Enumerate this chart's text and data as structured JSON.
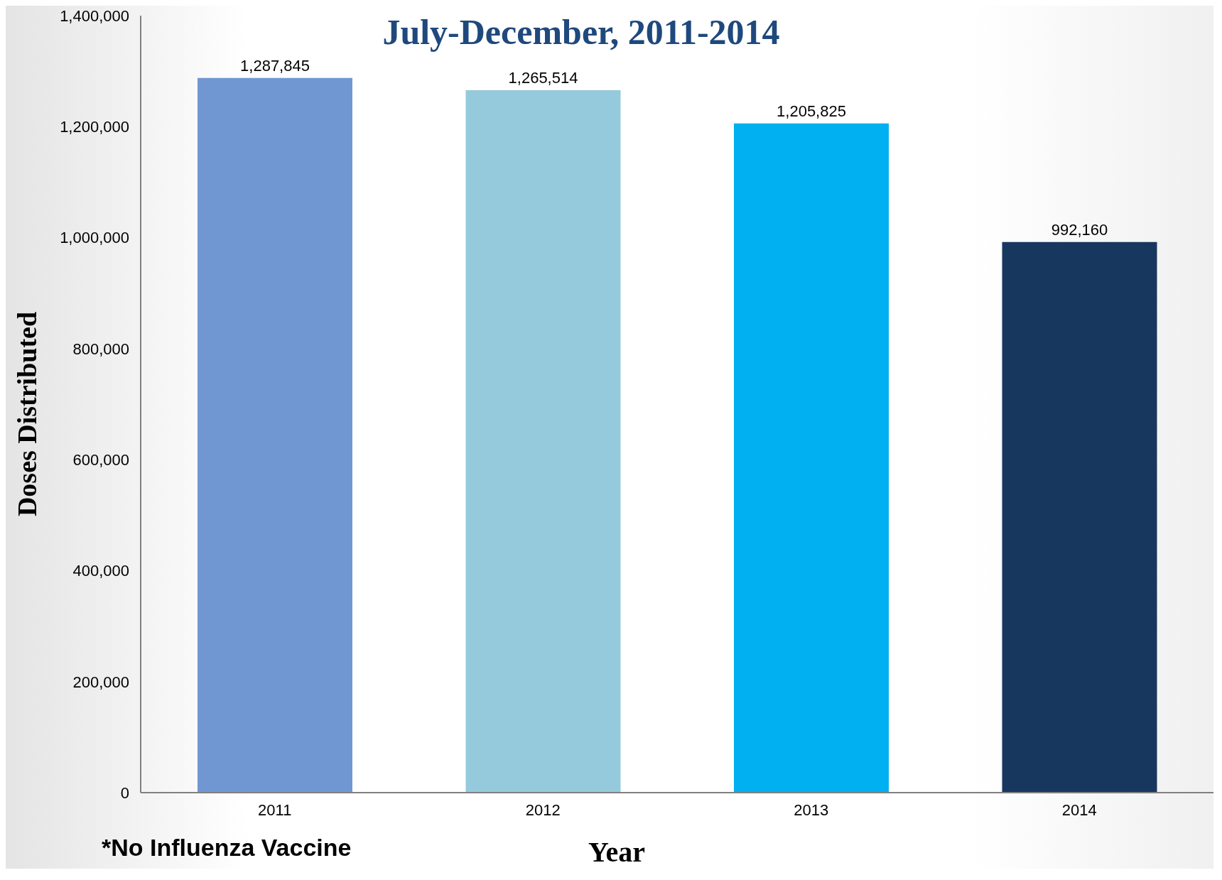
{
  "chart_data": {
    "type": "bar",
    "title": "July-December, 2011-2014",
    "xlabel": "Year",
    "ylabel": "Doses Distributed",
    "annotations": [
      "*No Influenza Vaccine"
    ],
    "categories": [
      "2011",
      "2012",
      "2013",
      "2014"
    ],
    "values": [
      1287845,
      1265514,
      1205825,
      992160
    ],
    "value_labels": [
      "1,287,845",
      "1,265,514",
      "1,205,825",
      "992,160"
    ],
    "colors": [
      "#7197d3",
      "#95cadd",
      "#00b0f0",
      "#17375e"
    ],
    "ylim": [
      0,
      1400000
    ],
    "yticks": [
      0,
      {
        "value": 200000,
        "label": "200,000"
      },
      {
        "value": 400000,
        "label": "400,000"
      },
      {
        "value": 600000,
        "label": "600,000"
      },
      {
        "value": 800000,
        "label": "800,000"
      },
      {
        "value": 1000000,
        "label": "1,000,000"
      },
      {
        "value": 1200000,
        "label": "1,200,000"
      },
      {
        "value": 1400000,
        "label": "1,400,000"
      }
    ],
    "grid": false
  }
}
